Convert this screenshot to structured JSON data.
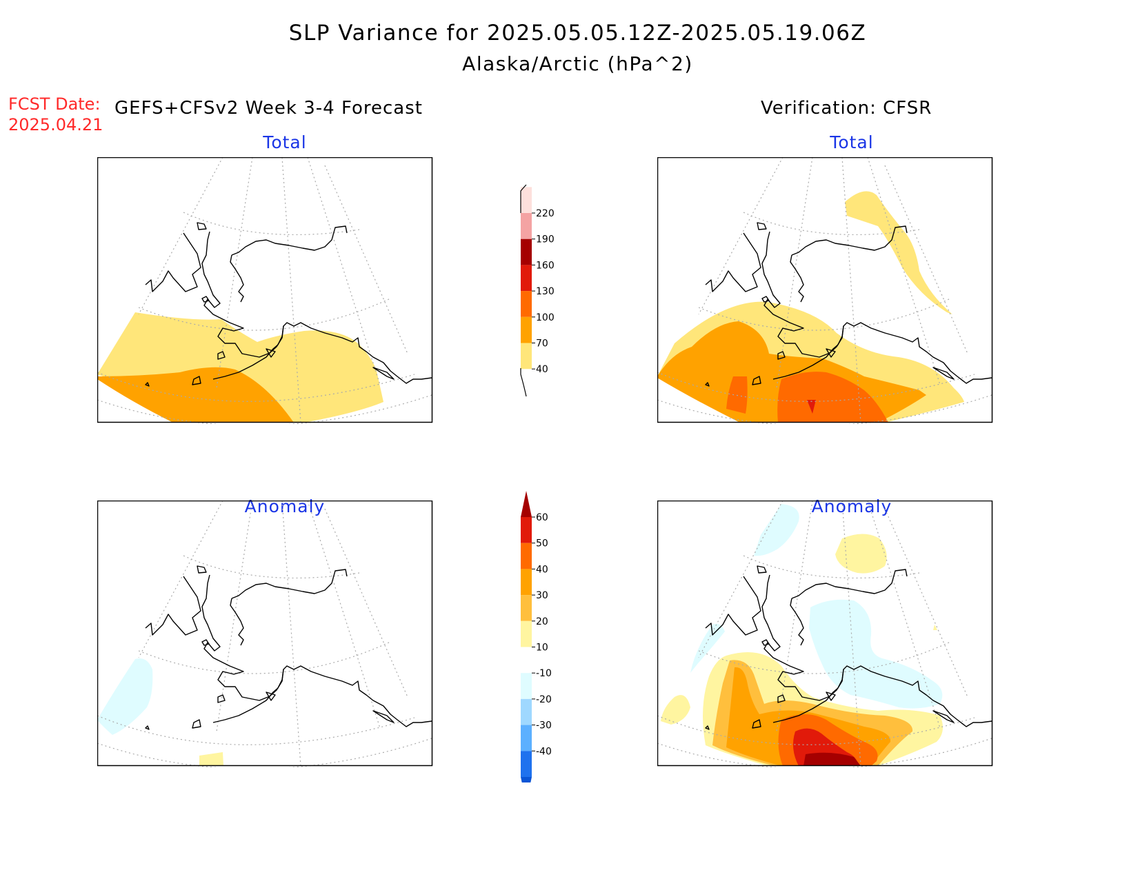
{
  "title": "SLP Variance for 2025.05.05.12Z-2025.05.19.06Z",
  "subtitle": "Alaska/Arctic (hPa^2)",
  "fcst": {
    "label": "FCST Date:",
    "value": "2025.04.21"
  },
  "left_header": "GEFS+CFSv2 Week 3-4 Forecast",
  "right_header": "Verification: CFSR",
  "panels": {
    "forecast_total": "Total",
    "verification_total": "Total",
    "forecast_anomaly": "Anomaly",
    "verification_anomaly": "Anomaly"
  },
  "colorbar_total": {
    "labels": [
      "220",
      "190",
      "160",
      "130",
      "100",
      "70",
      "40"
    ],
    "colors": [
      "#fde0dc",
      "#f4a3a3",
      "#a50000",
      "#e11a0a",
      "#ff6a00",
      "#ffa200",
      "#ffe67a"
    ]
  },
  "colorbar_anomaly": {
    "labels": [
      "60",
      "50",
      "40",
      "30",
      "20",
      "10",
      "-10",
      "-20",
      "-30",
      "-40"
    ],
    "colors": [
      "#a50000",
      "#e11a0a",
      "#ff6a00",
      "#ffa200",
      "#ffbf3d",
      "#fff5a0",
      "#ffffff",
      "#dffcff",
      "#9fd8ff",
      "#5cb0ff",
      "#1f72ee",
      "#0a55d6"
    ]
  },
  "fill_colors": {
    "c40": "#ffe67a",
    "c70": "#ffa200",
    "c100": "#ff6a00",
    "c130": "#e11a0a",
    "a10": "#fff5a0",
    "a20": "#ffbf3d",
    "a30": "#ffa200",
    "a40": "#ff6a00",
    "a50": "#e11a0a",
    "a60": "#a50000",
    "neg10": "#dffcff"
  }
}
